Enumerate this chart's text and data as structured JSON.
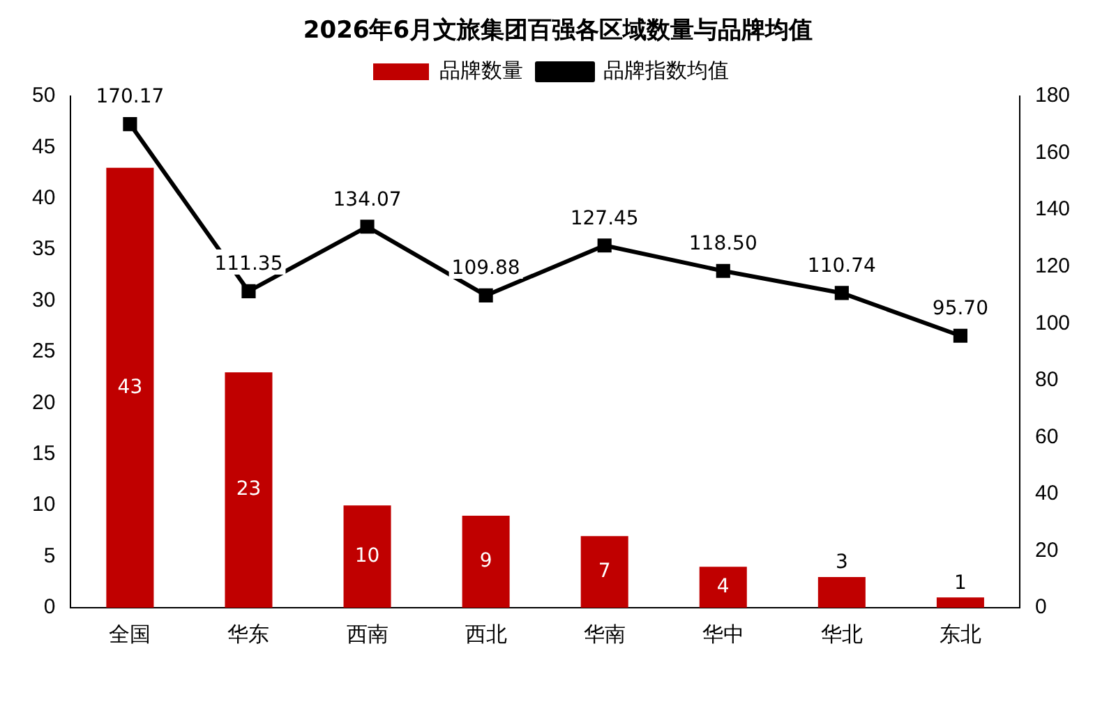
{
  "chart_data": {
    "type": "bar",
    "title": "2026年6月文旅集团百强各区域数量与品牌均值",
    "categories": [
      "全国",
      "华东",
      "西南",
      "西北",
      "华南",
      "华中",
      "华北",
      "东北"
    ],
    "series": [
      {
        "name": "品牌数量",
        "color": "#c00000",
        "values": [
          43,
          23,
          10,
          9,
          7,
          4,
          3,
          1
        ],
        "value_labels": [
          "43",
          "23",
          "10",
          "9",
          "7",
          "4",
          "3",
          "1"
        ]
      },
      {
        "name": "品牌指数均值",
        "type": "line",
        "axis": "y2",
        "color": "#000000",
        "values": [
          170.17,
          111.35,
          134.07,
          109.88,
          127.45,
          118.5,
          110.74,
          95.7
        ],
        "value_labels": [
          "170.17",
          "111.35",
          "134.07",
          "109.88",
          "127.45",
          "118.50",
          "110.74",
          "95.70"
        ]
      }
    ],
    "ylim": [
      0,
      50
    ],
    "yticks": [
      0,
      5,
      10,
      15,
      20,
      25,
      30,
      35,
      40,
      45,
      50
    ],
    "y2lim": [
      0,
      180
    ],
    "y2ticks": [
      0,
      20,
      40,
      60,
      80,
      100,
      120,
      140,
      160,
      180
    ],
    "grid": false,
    "legend": "top",
    "marker": "square",
    "line_style": "solid"
  }
}
